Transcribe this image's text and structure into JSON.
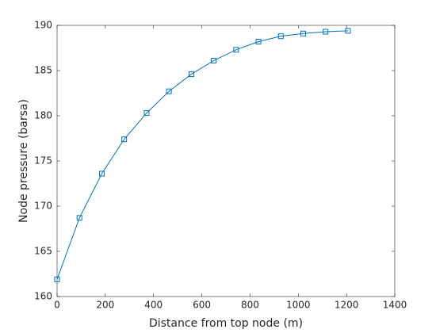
{
  "chart_data": {
    "type": "line",
    "xlabel": "Distance from top node (m)",
    "ylabel": "Node pressure (barsa)",
    "x": [
      0,
      92.8,
      185.5,
      278.3,
      371.1,
      463.8,
      556.6,
      649.4,
      742.2,
      834.9,
      927.7,
      1020.5,
      1113.2,
      1206
    ],
    "series": [
      {
        "color": "#0072bd",
        "marker": "square",
        "values": [
          161.9,
          168.7,
          173.6,
          177.4,
          180.3,
          182.7,
          184.6,
          186.1,
          187.3,
          188.2,
          188.8,
          189.1,
          189.3,
          189.4
        ]
      }
    ],
    "xlim": [
      0,
      1400
    ],
    "xticks": [
      0,
      200,
      400,
      600,
      800,
      1000,
      1200,
      1400
    ],
    "ylim": [
      160,
      190
    ],
    "yticks": [
      160,
      165,
      170,
      175,
      180,
      185,
      190
    ],
    "grid": false
  }
}
